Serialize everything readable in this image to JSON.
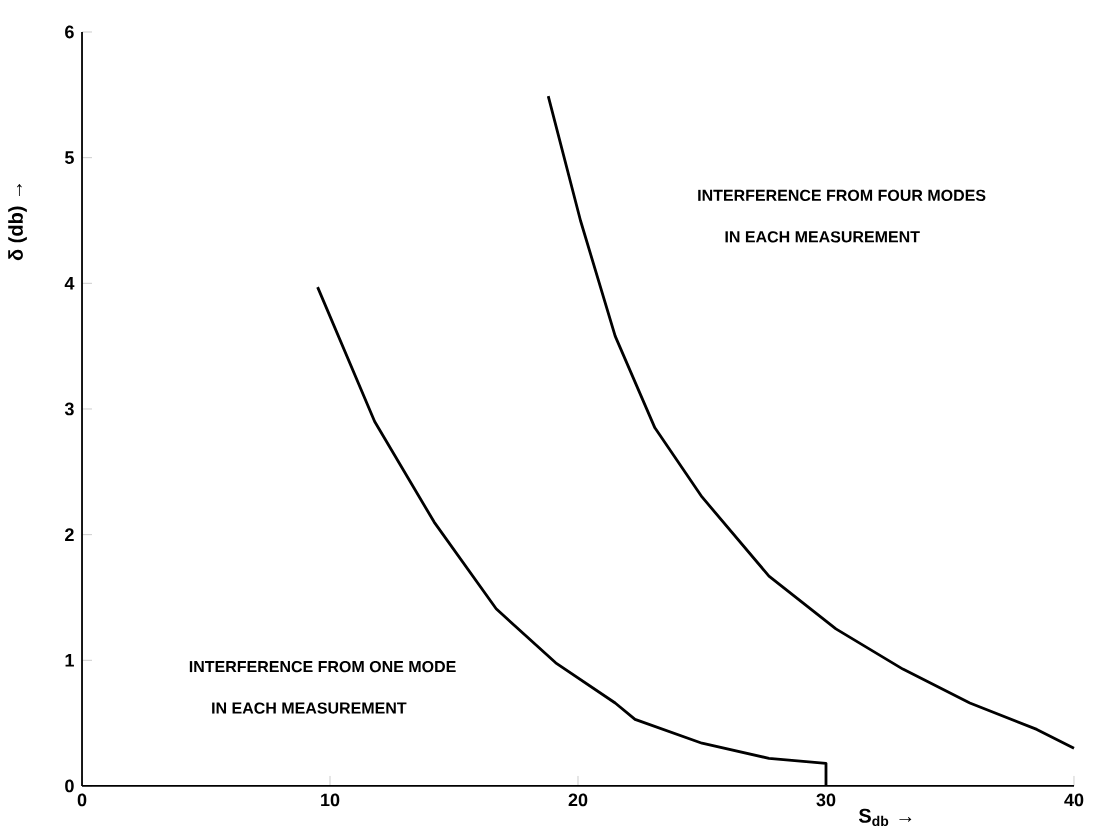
{
  "chart_data": {
    "type": "line",
    "xlabel": "S$_{db}$ →",
    "ylabel": "δ (db) →",
    "xlim": [
      0,
      40
    ],
    "ylim": [
      0,
      6
    ],
    "xticks": [
      0,
      10,
      20,
      30,
      40
    ],
    "yticks": [
      0,
      1,
      2,
      3,
      4,
      5,
      6
    ],
    "grid": false,
    "marker": "none",
    "line_style": "solid",
    "series": [
      {
        "color": "#000000",
        "x": [
          9.5,
          11.8,
          14.2,
          16.7,
          19.1,
          21.5,
          22.3,
          25,
          27.7,
          30,
          30
        ],
        "values": [
          3.97,
          2.9,
          2.1,
          1.41,
          0.98,
          0.66,
          0.53,
          0.34,
          0.22,
          0.18,
          0
        ]
      },
      {
        "color": "#000000",
        "x": [
          18.8,
          20.1,
          21.5,
          23.1,
          25,
          27.7,
          30.4,
          33.1,
          35.8,
          38.5,
          40
        ],
        "values": [
          5.49,
          4.5,
          3.58,
          2.85,
          2.3,
          1.67,
          1.25,
          0.93,
          0.66,
          0.45,
          0.3
        ]
      }
    ],
    "annotations": [
      "INTERFERENCE FROM ONE MODE",
      "IN EACH MEASUREMENT",
      "INTERFERENCE FROM FOUR MODES",
      "IN EACH MEASUREMENT"
    ]
  }
}
